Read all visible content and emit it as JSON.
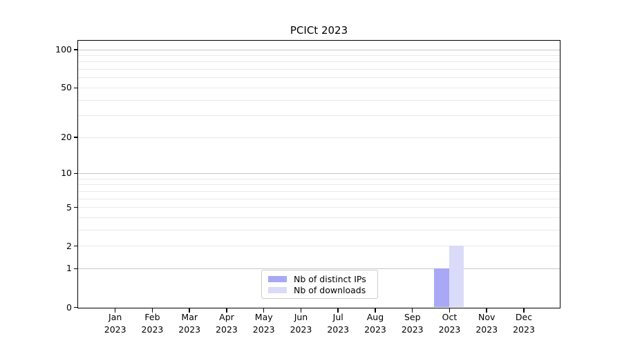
{
  "chart_data": {
    "type": "bar",
    "title": "PCICt 2023",
    "x_categories": [
      "Jan",
      "Feb",
      "Mar",
      "Apr",
      "May",
      "Jun",
      "Jul",
      "Aug",
      "Sep",
      "Oct",
      "Nov",
      "Dec"
    ],
    "x_sublabel": "2023",
    "series": [
      {
        "name": "Nb of distinct IPs",
        "color": "#a8a8f6",
        "values": [
          0,
          0,
          0,
          0,
          0,
          0,
          0,
          0,
          0,
          1,
          0,
          0
        ]
      },
      {
        "name": "Nb of downloads",
        "color": "#dadaf9",
        "values": [
          0,
          0,
          0,
          0,
          0,
          0,
          0,
          0,
          0,
          2,
          0,
          0
        ]
      }
    ],
    "y_axis": {
      "scale": "log1p",
      "tick_labels": [
        0,
        1,
        2,
        5,
        10,
        20,
        50,
        100
      ],
      "top_value": 117,
      "major_gridlines": [
        1,
        10,
        100
      ],
      "minor_gridlines": [
        2,
        3,
        4,
        5,
        6,
        7,
        8,
        9,
        20,
        30,
        40,
        50,
        60,
        70,
        80,
        90
      ]
    },
    "legend_position": "lower center",
    "grid": true
  },
  "colors": {
    "major_grid": "#c8c8c8",
    "minor_grid": "#e9e9e9",
    "spine": "#000000",
    "background": "#ffffff"
  }
}
